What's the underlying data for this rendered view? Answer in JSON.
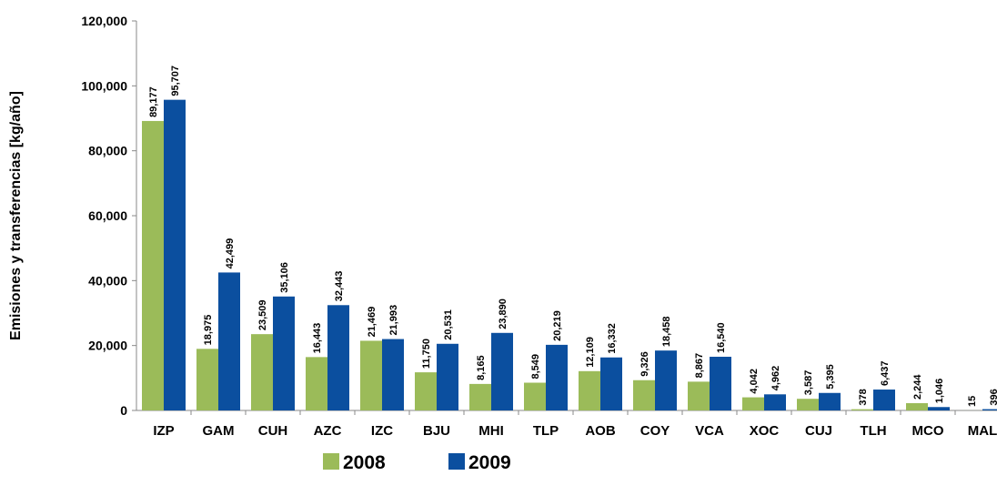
{
  "chart_data": {
    "type": "bar",
    "y_label": "Emisiones y transferencias  [kg/año]",
    "categories": [
      "IZP",
      "GAM",
      "CUH",
      "AZC",
      "IZC",
      "BJU",
      "MHI",
      "TLP",
      "AOB",
      "COY",
      "VCA",
      "XOC",
      "CUJ",
      "TLH",
      "MCO",
      "MAL"
    ],
    "series": [
      {
        "name": "2008",
        "color": "#9bbb59",
        "values": [
          89177,
          18975,
          23509,
          16443,
          21469,
          11750,
          8165,
          8549,
          12109,
          9326,
          8867,
          4042,
          3587,
          378,
          2244,
          15
        ],
        "value_labels": [
          "89,177",
          "18,975",
          "23,509",
          "16,443",
          "21,469",
          "11,750",
          "8,165",
          "8,549",
          "12,109",
          "9,326",
          "8,867",
          "4,042",
          "3,587",
          "378",
          "2,244",
          "15"
        ]
      },
      {
        "name": "2009",
        "color": "#0b4f9f",
        "values": [
          95707,
          42499,
          35106,
          32443,
          21993,
          20531,
          23890,
          20219,
          16332,
          18458,
          16540,
          4962,
          5395,
          6437,
          1046,
          396
        ],
        "value_labels": [
          "95,707",
          "42,499",
          "35,106",
          "32,443",
          "21,993",
          "20,531",
          "23,890",
          "20,219",
          "16,332",
          "18,458",
          "16,540",
          "4,962",
          "5,395",
          "6,437",
          "1,046",
          "396"
        ]
      }
    ],
    "ylim": [
      0,
      120000
    ],
    "yticks": [
      0,
      {
        "value": 20000,
        "label": "20,000"
      },
      {
        "value": 40000,
        "label": "40,000"
      },
      {
        "value": 60000,
        "label": "60,000"
      },
      {
        "value": 80000,
        "label": "80,000"
      },
      {
        "value": 100000,
        "label": "100,000"
      },
      {
        "value": 120000,
        "label": "120,000"
      }
    ],
    "legend": "bottom"
  }
}
